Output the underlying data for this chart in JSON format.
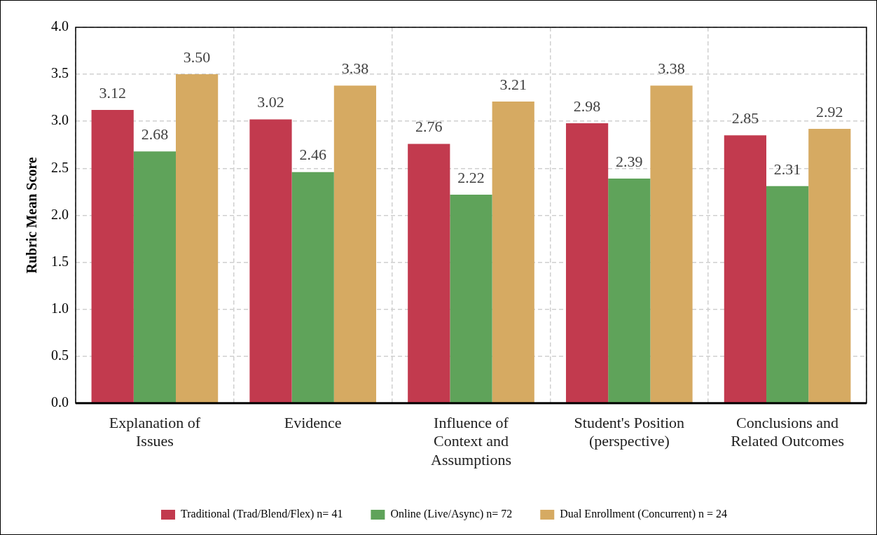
{
  "chart_data": {
    "type": "bar",
    "ylabel": "Rubric Mean Score",
    "categories": [
      "Explanation of Issues",
      "Evidence",
      "Influence of Context and Assumptions",
      "Student's Position (perspective)",
      "Conclusions and Related Outcomes"
    ],
    "series": [
      {
        "name": "Traditional (Trad/Blend/Flex) n= 41",
        "color": "#c23a4e",
        "values": [
          3.12,
          3.02,
          2.76,
          2.98,
          2.85
        ],
        "value_labels": [
          "3.12",
          "3.02",
          "2.76",
          "2.98",
          "2.85"
        ]
      },
      {
        "name": "Online (Live/Async) n= 72",
        "color": "#5fa35a",
        "values": [
          2.68,
          2.46,
          2.22,
          2.39,
          2.31
        ],
        "value_labels": [
          "2.68",
          "2.46",
          "2.22",
          "2.39",
          "2.31"
        ]
      },
      {
        "name": "Dual Enrollment (Concurrent) n = 24",
        "color": "#d6aa62",
        "values": [
          3.5,
          3.38,
          3.21,
          3.38,
          2.92
        ],
        "value_labels": [
          "3.50",
          "3.38",
          "3.21",
          "3.38",
          "2.92"
        ]
      }
    ],
    "ylim": [
      0,
      4
    ],
    "yticks": [
      {
        "value": 0,
        "label": "0.0"
      },
      {
        "value": 0.5,
        "label": "0.5"
      },
      {
        "value": 1,
        "label": "1.0"
      },
      {
        "value": 1.5,
        "label": "1.5"
      },
      {
        "value": 2,
        "label": "2.0"
      },
      {
        "value": 2.5,
        "label": "2.5"
      },
      {
        "value": 3,
        "label": "3.0"
      },
      {
        "value": 3.5,
        "label": "3.5"
      },
      {
        "value": 4,
        "label": "4.0"
      }
    ],
    "grid": true,
    "legend": "bottom"
  }
}
